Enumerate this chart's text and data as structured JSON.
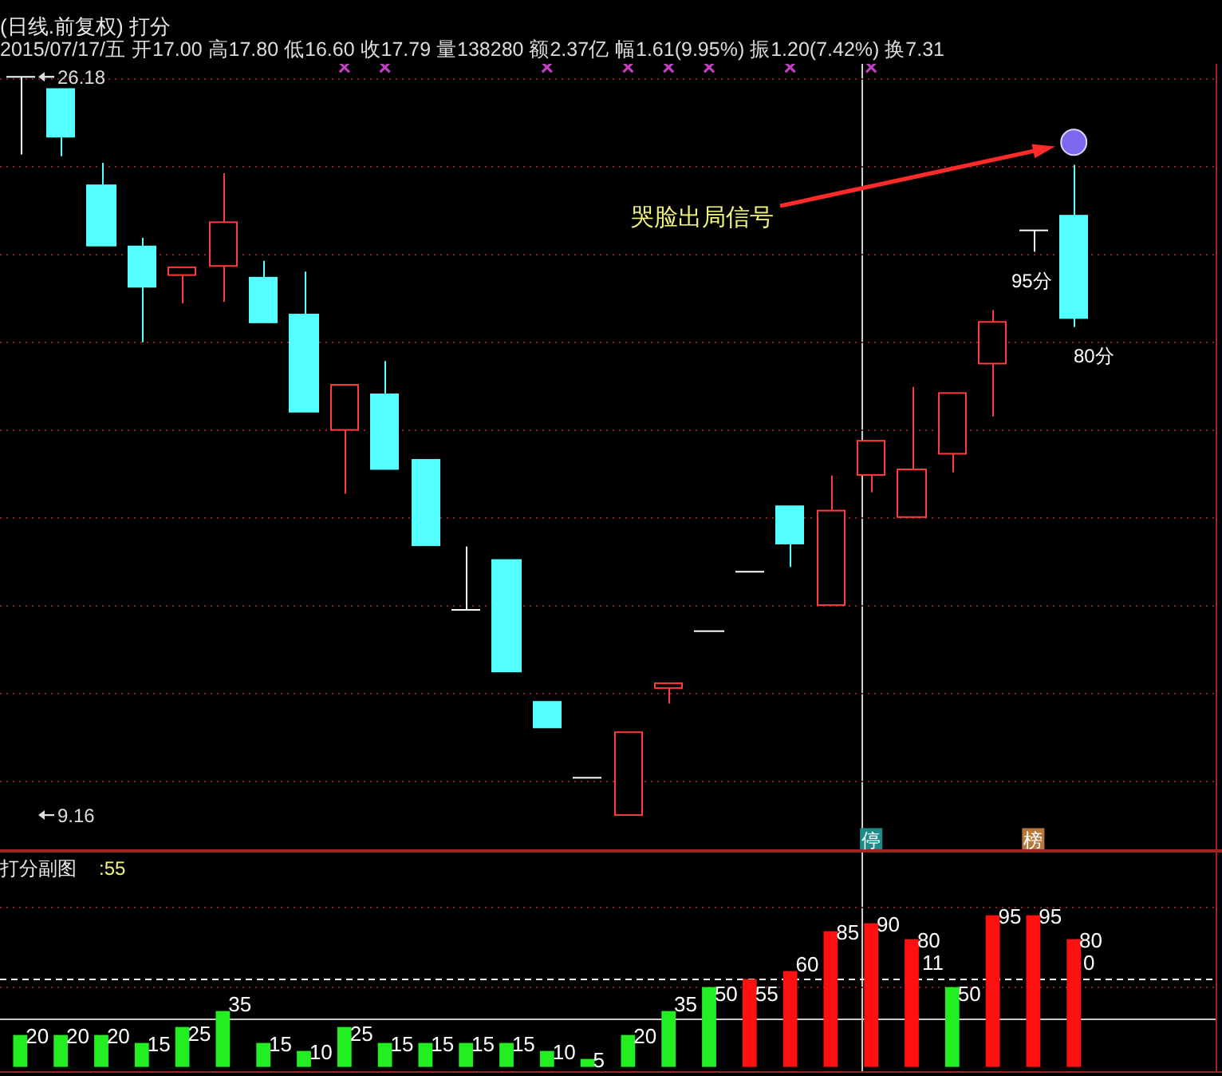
{
  "chart_data": [
    {
      "type": "candlestick",
      "subtitle": "2015/07/17/五 开17.00 高17.80 低16.60 收17.79 量138280 额2.37亿 幅1.61(9.95%) 振1.20(7.42%) 换7.31",
      "categories": [
        null,
        null,
        null,
        null,
        null,
        null,
        null,
        null,
        null,
        null,
        null,
        null,
        null,
        null,
        null,
        null,
        null,
        null,
        null,
        null,
        null,
        null,
        null,
        null,
        null,
        null,
        null,
        null,
        null,
        null
      ],
      "ohlc": [
        [
          26.18,
          26.18,
          24.39,
          26.18
        ],
        [
          25.9,
          25.9,
          24.35,
          24.8
        ],
        [
          23.68,
          24.2,
          22.29,
          22.29
        ],
        [
          22.27,
          22.47,
          20.06,
          21.34
        ],
        [
          21.61,
          21.79,
          20.96,
          21.79
        ],
        [
          21.82,
          23.96,
          20.99,
          22.83
        ],
        [
          21.55,
          21.94,
          20.52,
          20.52
        ],
        [
          20.7,
          21.69,
          18.46,
          18.46
        ],
        [
          18.04,
          19.08,
          16.57,
          19.08
        ],
        [
          18.86,
          19.63,
          17.14,
          17.14
        ],
        [
          17.35,
          17.35,
          15.38,
          15.38
        ],
        [
          13.89,
          15.35,
          13.89,
          13.89
        ],
        [
          15.04,
          15.04,
          12.47,
          12.47
        ],
        [
          11.77,
          11.77,
          11.18,
          11.18
        ],
        [
          10.02,
          10.02,
          10.02,
          10.02
        ],
        [
          9.16,
          11.07,
          9.16,
          11.07
        ],
        [
          12.09,
          12.2,
          11.73,
          12.2
        ],
        [
          13.4,
          13.4,
          13.4,
          13.4
        ],
        [
          14.77,
          14.77,
          14.77,
          14.77
        ],
        [
          16.28,
          16.28,
          14.88,
          15.42
        ],
        [
          14.0,
          16.99,
          14.0,
          16.18
        ],
        [
          17.0,
          17.8,
          16.6,
          17.79
        ],
        [
          16.03,
          19.03,
          16.03,
          17.13
        ],
        [
          17.49,
          18.89,
          17.06,
          18.89
        ],
        [
          19.57,
          20.8,
          18.35,
          20.53
        ],
        [
          22.64,
          22.64,
          22.15,
          22.64
        ],
        [
          22.98,
          24.15,
          20.41,
          20.62
        ],
        null,
        null,
        null
      ],
      "colors": [
        "#ffffff",
        "#54ffff",
        "#54ffff",
        "#54ffff",
        "#ff3c3c",
        "#ff3c3c",
        "#54ffff",
        "#54ffff",
        "#ff3c3c",
        "#54ffff",
        "#54ffff",
        "#ffffff",
        "#54ffff",
        "#54ffff",
        "#ffffff",
        "#ff3c3c",
        "#ff3c3c",
        "#ffffff",
        "#ffffff",
        "#54ffff",
        "#ff3c3c",
        "#ff3c3c",
        "#ff3c3c",
        "#ff3c3c",
        "#ff3c3c",
        "#ffffff",
        "#54ffff",
        null,
        null,
        null
      ],
      "series": [
        {
          "type": "scatter",
          "marker": "cross",
          "color": "#c040c0",
          "values": [
            null,
            null,
            null,
            null,
            null,
            null,
            null,
            null,
            26.4,
            26.4,
            null,
            null,
            null,
            26.4,
            null,
            26.4,
            26.4,
            26.4,
            null,
            26.4,
            null,
            26.4,
            null,
            null,
            null,
            null,
            null,
            null,
            null,
            null
          ]
        },
        {
          "type": "scatter",
          "marker": "circle",
          "color": "#7b68ee",
          "values": [
            null,
            null,
            null,
            null,
            null,
            null,
            null,
            null,
            null,
            null,
            null,
            null,
            null,
            null,
            null,
            null,
            null,
            null,
            null,
            null,
            null,
            null,
            null,
            null,
            null,
            null,
            24.67,
            null,
            null,
            null
          ]
        },
        {
          "type": "scatter",
          "marker": "square",
          "color": "#1f8a8a",
          "values": [
            null,
            null,
            null,
            null,
            null,
            null,
            null,
            null,
            null,
            null,
            null,
            null,
            null,
            null,
            null,
            null,
            null,
            null,
            null,
            null,
            null,
            8.6,
            null,
            null,
            null,
            null,
            null,
            null,
            null,
            null
          ],
          "value_labels": [
            null,
            null,
            null,
            null,
            null,
            null,
            null,
            null,
            null,
            null,
            null,
            null,
            null,
            null,
            null,
            null,
            null,
            null,
            null,
            null,
            null,
            "停",
            null,
            null,
            null,
            null,
            null,
            null,
            null,
            null
          ]
        },
        {
          "type": "scatter",
          "marker": "square",
          "color": "#b8783c",
          "values": [
            null,
            null,
            null,
            null,
            null,
            null,
            null,
            null,
            null,
            null,
            null,
            null,
            null,
            null,
            null,
            null,
            null,
            null,
            null,
            null,
            null,
            null,
            null,
            null,
            null,
            8.6,
            null,
            null,
            null,
            null
          ],
          "value_labels": [
            null,
            null,
            null,
            null,
            null,
            null,
            null,
            null,
            null,
            null,
            null,
            null,
            null,
            null,
            null,
            null,
            null,
            null,
            null,
            null,
            null,
            null,
            null,
            null,
            null,
            "榜",
            null,
            null,
            null,
            null
          ]
        }
      ],
      "ylim": [
        8.37,
        26.48
      ],
      "yticks": [
        {
          "value": 26.18,
          "label": "26.18"
        },
        {
          "value": 9.16,
          "label": "9.16"
        }
      ],
      "tick_labels": "y",
      "annotations": [
        "(日线.前复权) 打分",
        "哭脸出局信号",
        "95分",
        "80分"
      ],
      "ref_lines": [
        {
          "axis": "y",
          "value": 26.15,
          "color": "#8a2020",
          "line_style": "dotted"
        },
        {
          "axis": "y",
          "value": 24.12,
          "color": "#8a2020",
          "line_style": "dotted"
        },
        {
          "axis": "y",
          "value": 22.09,
          "color": "#8a2020",
          "line_style": "dotted"
        },
        {
          "axis": "y",
          "value": 20.07,
          "color": "#8a2020",
          "line_style": "dotted"
        },
        {
          "axis": "y",
          "value": 18.04,
          "color": "#8a2020",
          "line_style": "dotted"
        },
        {
          "axis": "y",
          "value": 16.02,
          "color": "#8a2020",
          "line_style": "dotted"
        },
        {
          "axis": "y",
          "value": 13.99,
          "color": "#8a2020",
          "line_style": "dotted"
        },
        {
          "axis": "y",
          "value": 11.96,
          "color": "#8a2020",
          "line_style": "dotted"
        },
        {
          "axis": "y",
          "value": 9.94,
          "color": "#8a2020",
          "line_style": "dotted"
        }
      ]
    },
    {
      "type": "bar",
      "title": "打分副图",
      "categories": [
        null,
        null,
        null,
        null,
        null,
        null,
        null,
        null,
        null,
        null,
        null,
        null,
        null,
        null,
        null,
        null,
        null,
        null,
        null,
        null,
        null,
        null,
        null,
        null,
        null,
        null,
        null,
        null,
        null,
        null
      ],
      "values": [
        20,
        20,
        20,
        15,
        25,
        35,
        15,
        10,
        25,
        15,
        15,
        15,
        15,
        10,
        5,
        20,
        35,
        50,
        55,
        60,
        85,
        90,
        80,
        50,
        95,
        95,
        80,
        null,
        null,
        null
      ],
      "colors": [
        "#22ee22",
        "#22ee22",
        "#22ee22",
        "#22ee22",
        "#22ee22",
        "#22ee22",
        "#22ee22",
        "#22ee22",
        "#22ee22",
        "#22ee22",
        "#22ee22",
        "#22ee22",
        "#22ee22",
        "#22ee22",
        "#22ee22",
        "#22ee22",
        "#22ee22",
        "#22ee22",
        "#ff1010",
        "#ff1010",
        "#ff1010",
        "#ff1010",
        "#ff1010",
        "#22ee22",
        "#ff1010",
        "#ff1010",
        "#ff1010",
        null,
        null,
        null
      ],
      "data_labels": true,
      "annotations": [
        ":55",
        "11",
        "0"
      ],
      "ref_lines": [
        {
          "axis": "y",
          "value": 100,
          "color": "#8a2020",
          "line_style": "dotted"
        },
        {
          "axis": "y",
          "value": 50,
          "color": "#8a2020",
          "line_style": "dotted"
        },
        {
          "axis": "y",
          "value": 55,
          "color": "#ffffff",
          "line_style": "dashed"
        },
        {
          "axis": "y",
          "value": 30,
          "color": "#c8c8c8"
        }
      ],
      "tick_labels": false
    }
  ]
}
